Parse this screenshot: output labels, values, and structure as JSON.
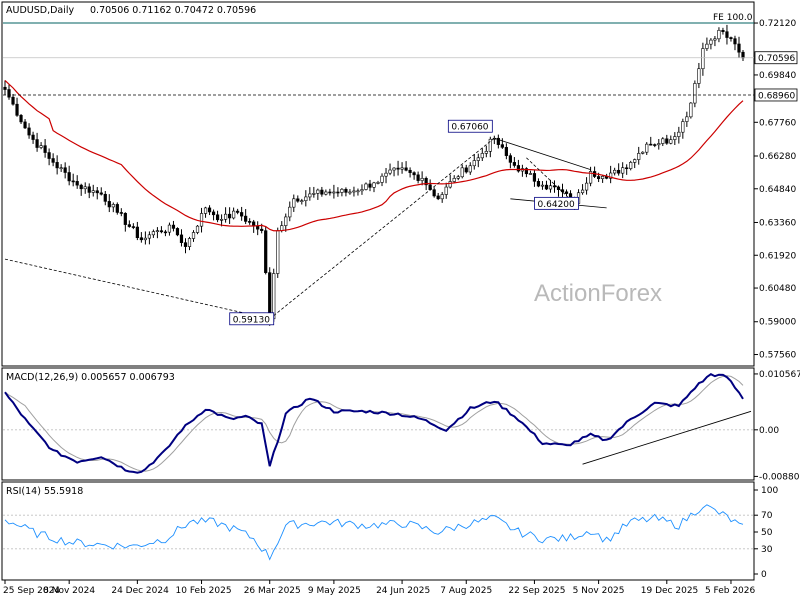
{
  "chart_data": [
    {
      "type": "candlestick",
      "title": "AUDUSD,Daily",
      "ohlc_text": "0.70506 0.71162 0.70472 0.70596",
      "last_price": "0.70596",
      "level_label": "0.68960",
      "level_value": 0.6896,
      "fe_label": "FE 100.0",
      "fe_value": 0.7212,
      "watermark": "ActionForex",
      "ylim": [
        0.571,
        0.73
      ],
      "y_ticks": [
        "0.72120",
        "0.69840",
        "0.67760",
        "0.66280",
        "0.64840",
        "0.63360",
        "0.61920",
        "0.60480",
        "0.59000",
        "0.57560"
      ],
      "annotations": [
        {
          "text": "0.67060",
          "date_index": 122,
          "value": 0.6706
        },
        {
          "text": "0.64200",
          "date_index": 142,
          "value": 0.642
        },
        {
          "text": "0.59130",
          "date_index": 66,
          "value": 0.5913
        }
      ],
      "close_anchors": [
        [
          0,
          0.692
        ],
        [
          6,
          0.672
        ],
        [
          12,
          0.66
        ],
        [
          18,
          0.65
        ],
        [
          24,
          0.646
        ],
        [
          28,
          0.638
        ],
        [
          34,
          0.626
        ],
        [
          38,
          0.63
        ],
        [
          42,
          0.631
        ],
        [
          45,
          0.623
        ],
        [
          50,
          0.64
        ],
        [
          54,
          0.635
        ],
        [
          58,
          0.638
        ],
        [
          62,
          0.632
        ],
        [
          64,
          0.63
        ],
        [
          66,
          0.5913
        ],
        [
          68,
          0.63
        ],
        [
          72,
          0.644
        ],
        [
          80,
          0.647
        ],
        [
          86,
          0.647
        ],
        [
          92,
          0.651
        ],
        [
          98,
          0.657
        ],
        [
          104,
          0.653
        ],
        [
          108,
          0.644
        ],
        [
          112,
          0.653
        ],
        [
          118,
          0.662
        ],
        [
          122,
          0.6706
        ],
        [
          126,
          0.66
        ],
        [
          130,
          0.655
        ],
        [
          134,
          0.65
        ],
        [
          138,
          0.648
        ],
        [
          142,
          0.642
        ],
        [
          146,
          0.656
        ],
        [
          150,
          0.653
        ],
        [
          156,
          0.66
        ],
        [
          160,
          0.668
        ],
        [
          166,
          0.67
        ],
        [
          170,
          0.68
        ],
        [
          174,
          0.71
        ],
        [
          178,
          0.718
        ],
        [
          182,
          0.712
        ],
        [
          184,
          0.7059
        ]
      ]
    },
    {
      "type": "line",
      "title": "MACD(12,26,9) 0.005657 0.006793",
      "ylim": [
        -0.0093,
        0.0115
      ],
      "y_ticks": [
        "0.010567",
        "0.00",
        "-0.008808"
      ],
      "y_tick_values": [
        0.010567,
        0.0,
        -0.008808
      ],
      "anchors": [
        [
          0,
          0.007
        ],
        [
          6,
          0.001
        ],
        [
          12,
          -0.004
        ],
        [
          18,
          -0.006
        ],
        [
          24,
          -0.005
        ],
        [
          30,
          -0.0075
        ],
        [
          34,
          -0.008
        ],
        [
          40,
          -0.004
        ],
        [
          44,
          0.0
        ],
        [
          50,
          0.004
        ],
        [
          56,
          0.002
        ],
        [
          60,
          0.0025
        ],
        [
          64,
          0.001
        ],
        [
          66,
          -0.007
        ],
        [
          70,
          0.003
        ],
        [
          76,
          0.006
        ],
        [
          82,
          0.0035
        ],
        [
          90,
          0.0035
        ],
        [
          98,
          0.003
        ],
        [
          104,
          0.002
        ],
        [
          110,
          0.0
        ],
        [
          116,
          0.004
        ],
        [
          122,
          0.0055
        ],
        [
          128,
          0.002
        ],
        [
          134,
          -0.0025
        ],
        [
          140,
          -0.003
        ],
        [
          146,
          -0.001
        ],
        [
          150,
          -0.002
        ],
        [
          156,
          0.002
        ],
        [
          162,
          0.005
        ],
        [
          168,
          0.0045
        ],
        [
          172,
          0.008
        ],
        [
          176,
          0.0105
        ],
        [
          180,
          0.01
        ],
        [
          184,
          0.006
        ]
      ]
    },
    {
      "type": "line",
      "title": "RSI(14) 55.5918",
      "ylim": [
        0,
        100
      ],
      "y_ticks": [
        "100",
        "70",
        "50",
        "30",
        "0"
      ],
      "y_tick_values": [
        100,
        70,
        50,
        30,
        0
      ],
      "anchors": [
        [
          0,
          65
        ],
        [
          8,
          48
        ],
        [
          16,
          38
        ],
        [
          24,
          35
        ],
        [
          32,
          33
        ],
        [
          40,
          42
        ],
        [
          46,
          62
        ],
        [
          52,
          62
        ],
        [
          58,
          52
        ],
        [
          62,
          42
        ],
        [
          66,
          20
        ],
        [
          70,
          58
        ],
        [
          80,
          62
        ],
        [
          90,
          58
        ],
        [
          100,
          60
        ],
        [
          108,
          50
        ],
        [
          114,
          58
        ],
        [
          122,
          66
        ],
        [
          128,
          50
        ],
        [
          134,
          42
        ],
        [
          140,
          42
        ],
        [
          146,
          52
        ],
        [
          150,
          40
        ],
        [
          156,
          62
        ],
        [
          162,
          66
        ],
        [
          168,
          58
        ],
        [
          174,
          82
        ],
        [
          180,
          68
        ],
        [
          184,
          55
        ]
      ]
    }
  ],
  "x_labels": [
    "25 Sep 2024",
    "8 Nov 2024",
    "24 Dec 2024",
    "10 Feb 2025",
    "26 Mar 2025",
    "9 May 2025",
    "24 Jun 2025",
    "7 Aug 2025",
    "22 Sep 2025",
    "5 Nov 2025",
    "19 Dec 2025",
    "5 Feb 2026"
  ],
  "x_label_indices": [
    0,
    16,
    33,
    49,
    66,
    82,
    99,
    115,
    132,
    148,
    165,
    181
  ],
  "colors": {
    "candles": "#000000",
    "moving_average": "#cc0000",
    "macd_line": "#000080",
    "signal_line": "#a0a0a0",
    "rsi_line": "#1e90ff",
    "grid": "#c0c0c0"
  }
}
